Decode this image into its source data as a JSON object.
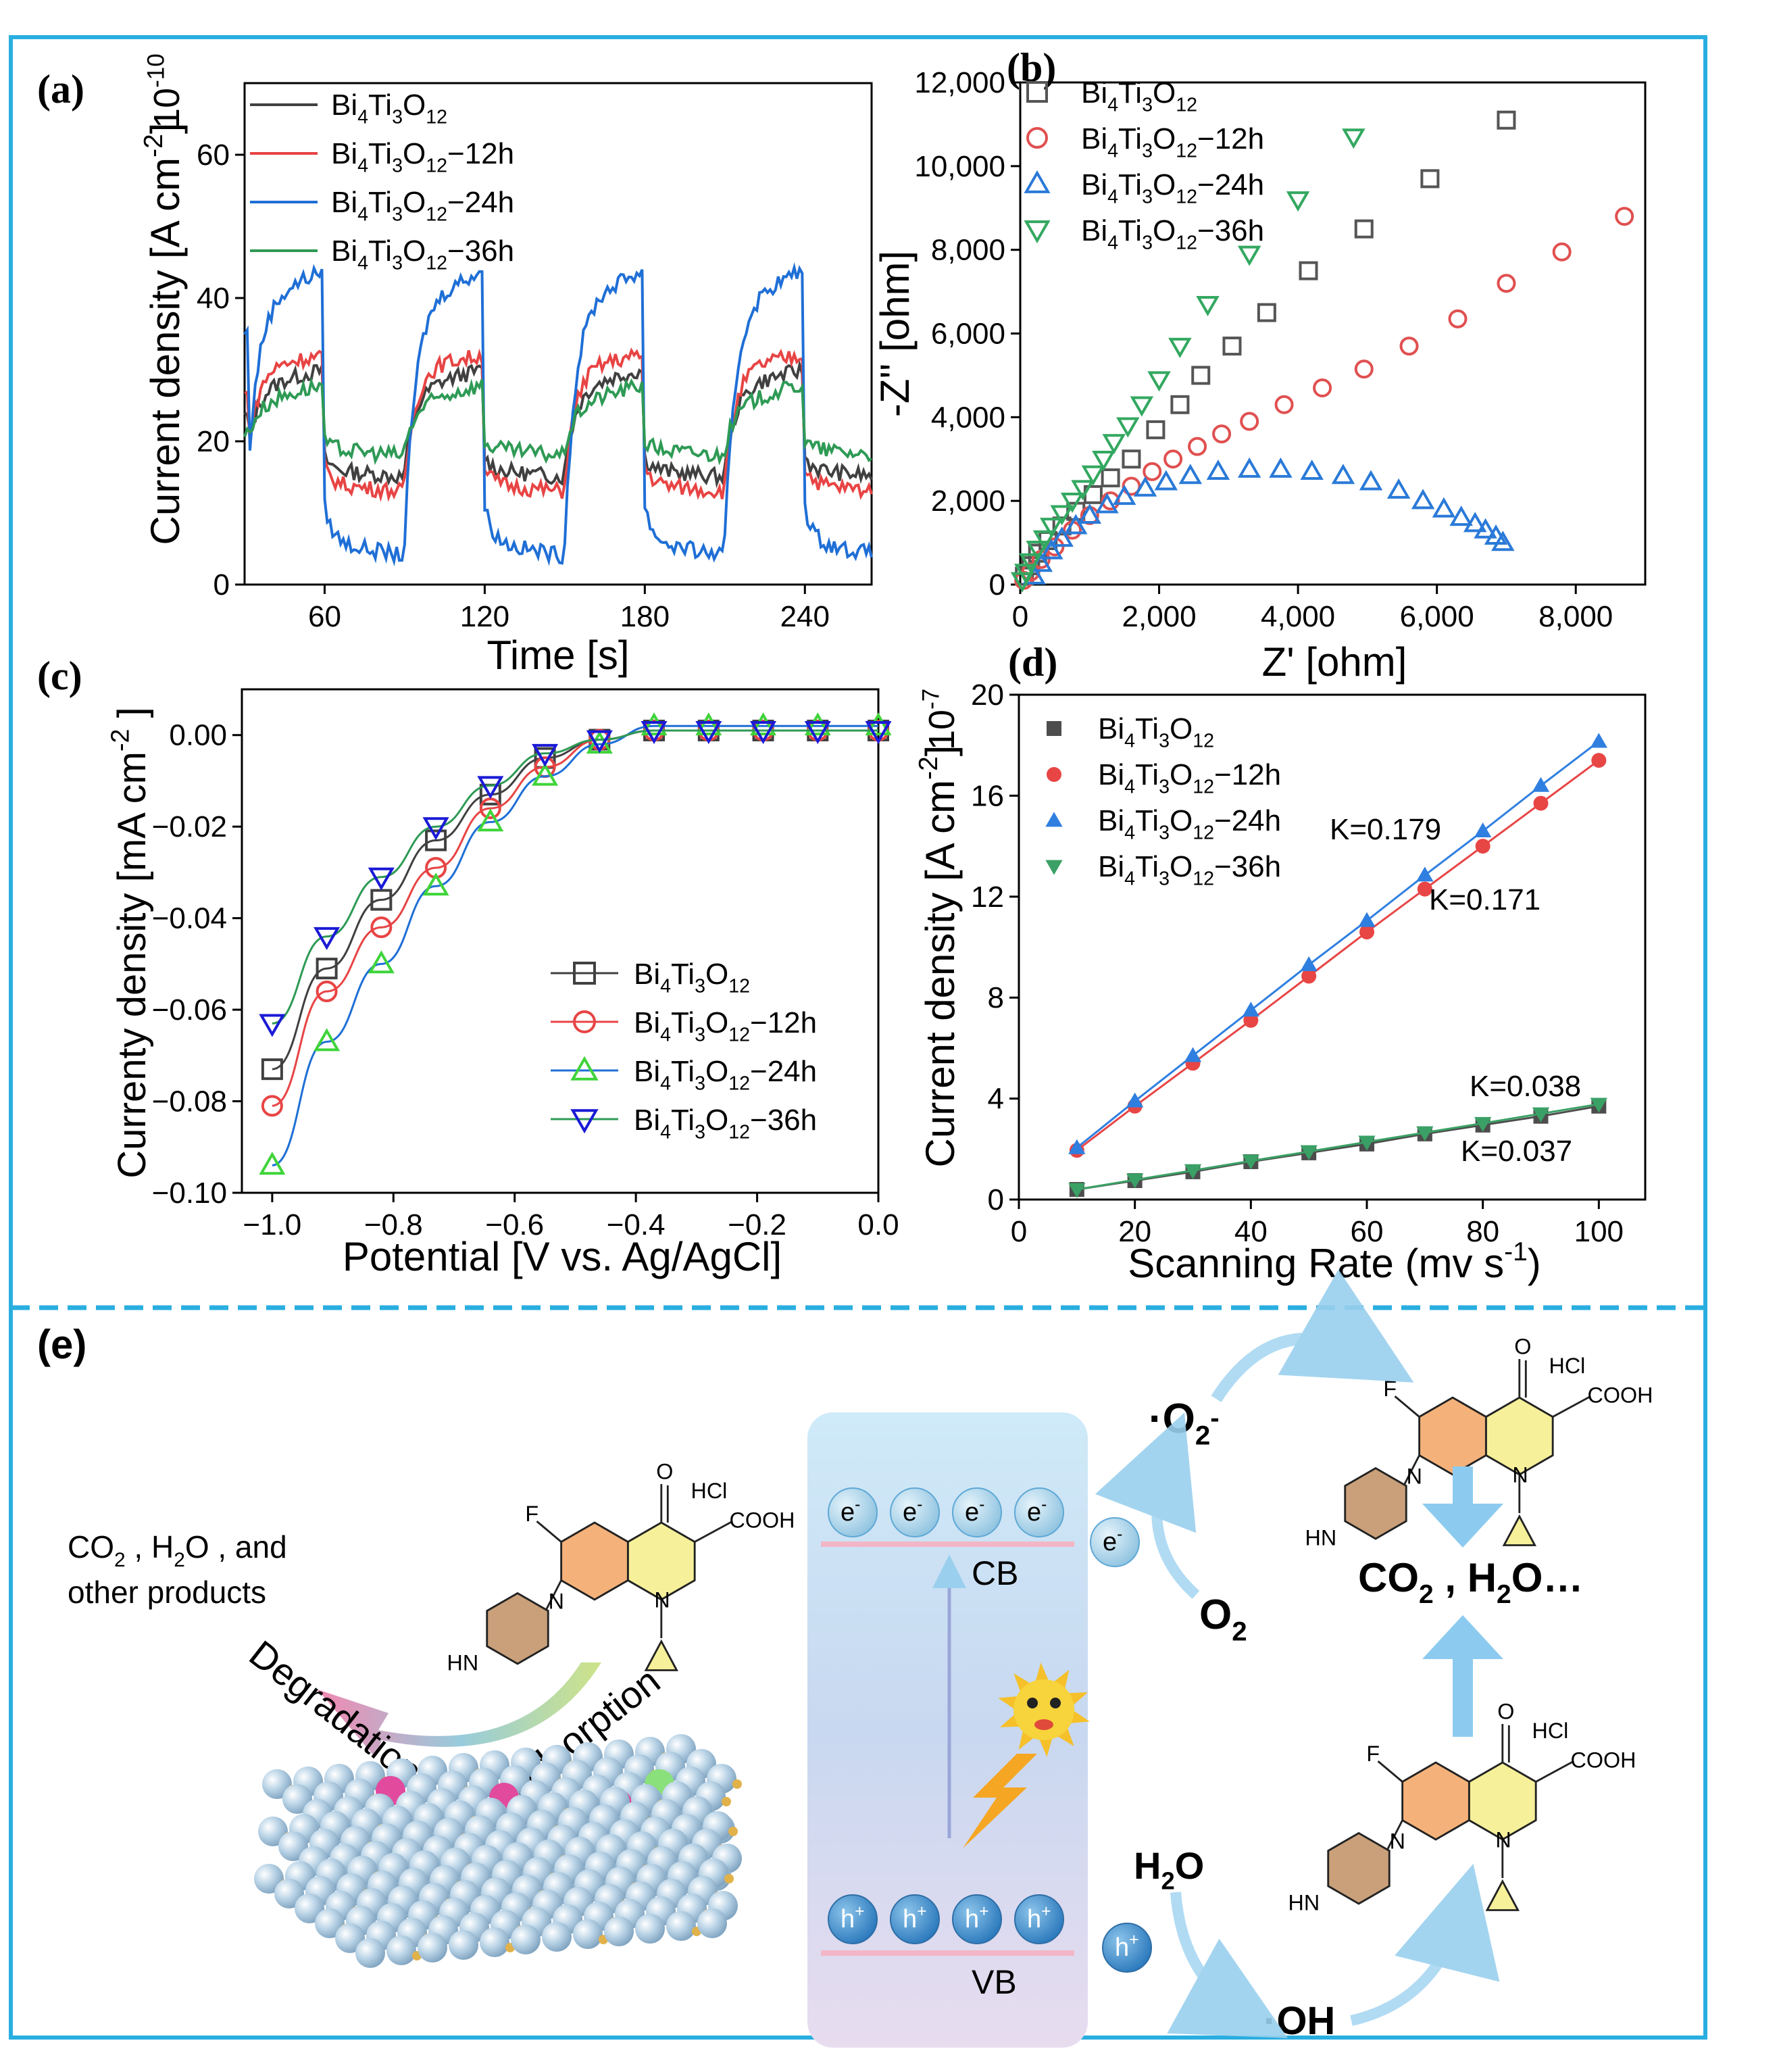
{
  "colors": {
    "border": "#29aee0",
    "black": "#404040",
    "red": "#e84444",
    "blue": "#1f6fd6",
    "green": "#2e9a55",
    "bright_green": "#3fd43a",
    "navy": "#1a1ad6",
    "eis_gray": "#555555",
    "eis_red": "#e05050",
    "eis_blue": "#2a7ad8",
    "eis_green": "#33a860",
    "d_gray": "#4d4d4d",
    "d_red": "#e84545",
    "d_blue": "#2f7fe0",
    "d_green": "#3aa065"
  },
  "chart_data": [
    {
      "panel": "(a)",
      "type": "line",
      "xlabel": "Time [s]",
      "ylabel": "Current density [A cm",
      "ylabel_sup": "-2",
      "ylabel_close": "]",
      "multiplier": "10",
      "multiplier_exp": "-10",
      "xlim": [
        30,
        265
      ],
      "ylim": [
        0,
        70
      ],
      "xticks": [
        "60",
        "120",
        "180",
        "240"
      ],
      "xtick_values": [
        60,
        120,
        180,
        240
      ],
      "yticks": [
        "0",
        "20",
        "40",
        "60"
      ],
      "ytick_values": [
        0,
        20,
        40,
        60
      ],
      "legend": "top-left",
      "series": [
        {
          "name": "Bi4Ti3O12",
          "color_key": "black",
          "on": 27.5,
          "off": 16,
          "peak": 30,
          "trough": 15
        },
        {
          "name": "Bi4Ti3O12-12h",
          "color_key": "red",
          "on": 30.5,
          "off": 14,
          "peak": 32,
          "trough": 13
        },
        {
          "name": "Bi4Ti3O12-24h",
          "color_key": "blue",
          "on": 39,
          "off": 6,
          "peak": 44,
          "trough": 4
        },
        {
          "name": "Bi4Ti3O12-36h",
          "color_key": "green",
          "on": 25,
          "off": 19,
          "peak": 28,
          "trough": 18
        }
      ]
    },
    {
      "panel": "(b)",
      "type": "scatter",
      "xlabel": "Z' [ohm]",
      "ylabel": "-Z'' [ohm]",
      "xlim": [
        0,
        9000
      ],
      "ylim": [
        0,
        12000
      ],
      "xticks": [
        "0",
        "2,000",
        "4,000",
        "6,000",
        "8,000"
      ],
      "xtick_values": [
        0,
        2000,
        4000,
        6000,
        8000
      ],
      "yticks": [
        "0",
        "2,000",
        "4,000",
        "6,000",
        "8,000",
        "10,000",
        "12,000"
      ],
      "ytick_values": [
        0,
        2000,
        4000,
        6000,
        8000,
        10000,
        12000
      ],
      "legend": "top-left",
      "series": [
        {
          "name": "Bi4Ti3O12",
          "marker": "square",
          "color_key": "eis_gray",
          "x": [
            60,
            150,
            250,
            400,
            600,
            800,
            1050,
            1300,
            1600,
            1950,
            2300,
            2600,
            3050,
            3550,
            4150,
            4950,
            5900,
            7000
          ],
          "y": [
            200,
            450,
            750,
            1050,
            1400,
            1750,
            2150,
            2550,
            3000,
            3700,
            4300,
            5000,
            5700,
            6500,
            7500,
            8500,
            9700,
            11100
          ]
        },
        {
          "name": "Bi4Ti3O12-12h",
          "marker": "circle",
          "color_key": "eis_red",
          "x": [
            50,
            150,
            300,
            500,
            750,
            1000,
            1300,
            1600,
            1900,
            2200,
            2550,
            2900,
            3300,
            3800,
            4350,
            4950,
            5600,
            6300,
            7000,
            7800,
            8700
          ],
          "y": [
            100,
            300,
            600,
            900,
            1300,
            1650,
            2000,
            2350,
            2700,
            3000,
            3300,
            3600,
            3900,
            4300,
            4700,
            5150,
            5700,
            6350,
            7200,
            7950,
            8800
          ]
        },
        {
          "name": "Bi4Ti3O12-24h",
          "marker": "triangle-up",
          "color_key": "eis_blue",
          "x": [
            200,
            300,
            450,
            600,
            800,
            1000,
            1250,
            1500,
            1800,
            2100,
            2450,
            2850,
            3300,
            3750,
            4200,
            4650,
            5050,
            5450,
            5800,
            6100,
            6350,
            6550,
            6700,
            6850,
            6950
          ],
          "y": [
            200,
            500,
            800,
            1100,
            1400,
            1650,
            1900,
            2100,
            2300,
            2450,
            2600,
            2700,
            2750,
            2750,
            2700,
            2600,
            2450,
            2250,
            2000,
            1800,
            1600,
            1450,
            1300,
            1150,
            1000
          ]
        },
        {
          "name": "Bi4Ti3O12-36h",
          "marker": "triangle-down",
          "color_key": "eis_green",
          "x": [
            30,
            80,
            150,
            250,
            350,
            450,
            600,
            750,
            900,
            1050,
            1200,
            1350,
            1550,
            1750,
            2000,
            2300,
            2700,
            3300,
            4000,
            4800
          ],
          "y": [
            100,
            300,
            550,
            850,
            1100,
            1400,
            1700,
            2000,
            2300,
            2650,
            3000,
            3400,
            3800,
            4300,
            4900,
            5700,
            6700,
            7900,
            9200,
            10700
          ]
        }
      ]
    },
    {
      "panel": "(c)",
      "type": "line",
      "xlabel": "Potential [V vs. Ag/AgCl]",
      "ylabel": "Currenty density [mA cm",
      "ylabel_sup": "-2",
      "ylabel_close": " ]",
      "xlim": [
        -1.05,
        0.0
      ],
      "ylim": [
        -0.1,
        0.01
      ],
      "xticks": [
        "-1.0",
        "-0.8",
        "-0.6",
        "-0.4",
        "-0.2",
        "0.0"
      ],
      "xtick_values": [
        -1.0,
        -0.8,
        -0.6,
        -0.4,
        -0.2,
        0.0
      ],
      "yticks": [
        "-0.10",
        "-0.08",
        "-0.06",
        "-0.04",
        "-0.02",
        "0.00"
      ],
      "ytick_values": [
        -0.1,
        -0.08,
        -0.06,
        -0.04,
        -0.02,
        0.0
      ],
      "legend": "center-right",
      "series": [
        {
          "name": "Bi4Ti3O12",
          "marker": "square",
          "color_key": "black",
          "x": [
            -1.0,
            -0.91,
            -0.82,
            -0.73,
            -0.64,
            -0.55,
            -0.46,
            -0.37,
            -0.28,
            -0.19,
            -0.1,
            0.0
          ],
          "y": [
            -0.073,
            -0.051,
            -0.036,
            -0.023,
            -0.013,
            -0.005,
            -0.001,
            0.001,
            0.001,
            0.001,
            0.001,
            0.001
          ]
        },
        {
          "name": "Bi4Ti3O12-12h",
          "marker": "circle",
          "color_key": "red",
          "x": [
            -1.0,
            -0.91,
            -0.82,
            -0.73,
            -0.64,
            -0.55,
            -0.46,
            -0.37,
            -0.28,
            -0.19,
            -0.1,
            0.0
          ],
          "y": [
            -0.081,
            -0.056,
            -0.042,
            -0.029,
            -0.016,
            -0.007,
            -0.001,
            0.001,
            0.001,
            0.001,
            0.001,
            0.001
          ]
        },
        {
          "name": "Bi4Ti3O12-24h",
          "marker": "triangle-up",
          "color_key": "bright_green",
          "x": [
            -1.0,
            -0.91,
            -0.82,
            -0.73,
            -0.64,
            -0.55,
            -0.46,
            -0.37,
            -0.28,
            -0.19,
            -0.1,
            0.0
          ],
          "y": [
            -0.094,
            -0.067,
            -0.05,
            -0.033,
            -0.019,
            -0.009,
            -0.002,
            0.002,
            0.002,
            0.002,
            0.002,
            0.002
          ]
        },
        {
          "name": "Bi4Ti3O12-36h",
          "marker": "triangle-down",
          "color_key": "navy",
          "x": [
            -1.0,
            -0.91,
            -0.82,
            -0.73,
            -0.64,
            -0.55,
            -0.46,
            -0.37,
            -0.28,
            -0.19,
            -0.1,
            0.0
          ],
          "y": [
            -0.063,
            -0.044,
            -0.031,
            -0.02,
            -0.011,
            -0.004,
            -0.001,
            0.001,
            0.001,
            0.001,
            0.001,
            0.001
          ]
        }
      ],
      "fit_color_key": {
        "Bi4Ti3O12": "black",
        "Bi4Ti3O12-12h": "red",
        "Bi4Ti3O12-24h": "blue",
        "Bi4Ti3O12-36h": "green"
      }
    },
    {
      "panel": "(d)",
      "type": "scatter",
      "xlabel": "Scanning Rate (mv s",
      "xlabel_sup": "-1",
      "xlabel_close": ")",
      "ylabel": "Current density [A cm",
      "ylabel_sup": "-2",
      "ylabel_close": "]",
      "multiplier": "10",
      "multiplier_exp": "-7",
      "xlim": [
        0,
        108
      ],
      "ylim": [
        0,
        20
      ],
      "xticks": [
        "0",
        "20",
        "40",
        "60",
        "80",
        "100"
      ],
      "xtick_values": [
        0,
        20,
        40,
        60,
        80,
        100
      ],
      "yticks": [
        "0",
        "4",
        "8",
        "12",
        "16",
        "20"
      ],
      "ytick_values": [
        0,
        4,
        8,
        12,
        16,
        20
      ],
      "legend": "top-left",
      "x": [
        10,
        20,
        30,
        40,
        50,
        60,
        70,
        80,
        90,
        100
      ],
      "series": [
        {
          "name": "Bi4Ti3O12",
          "marker": "square",
          "color_key": "d_gray",
          "values": [
            0.4,
            0.75,
            1.1,
            1.5,
            1.85,
            2.2,
            2.6,
            2.95,
            3.3,
            3.7
          ]
        },
        {
          "name": "Bi4Ti3O12-12h",
          "marker": "circle",
          "color_key": "d_red",
          "values": [
            1.95,
            3.7,
            5.4,
            7.1,
            8.85,
            10.6,
            12.3,
            14.0,
            15.7,
            17.4
          ]
        },
        {
          "name": "Bi4Ti3O12-24h",
          "marker": "triangle-up",
          "color_key": "d_blue",
          "values": [
            2.05,
            3.9,
            5.7,
            7.5,
            9.3,
            11.05,
            12.85,
            14.6,
            16.4,
            18.15
          ]
        },
        {
          "name": "Bi4Ti3O12-36h",
          "marker": "triangle-down",
          "color_key": "d_green",
          "values": [
            0.4,
            0.78,
            1.15,
            1.53,
            1.9,
            2.28,
            2.65,
            3.02,
            3.4,
            3.78
          ]
        }
      ],
      "annotations": [
        "K=0.179",
        "K=0.171",
        "K=0.038",
        "K=0.037"
      ]
    }
  ],
  "panel_e": {
    "label": "(e)",
    "products_line1": "CO",
    "products_line1_sub": "2",
    "products_line1_rest": " ,  H",
    "products_line1_sub2": "2",
    "products_line1_end": "O , and",
    "products_line2": "other products",
    "degradation": "Degradation",
    "adsorption": "Adsorption",
    "molecule_f": "F",
    "molecule_o": "O",
    "molecule_hcl": "HCl",
    "molecule_cooh": "COOH",
    "molecule_n": "N",
    "molecule_hn": "HN",
    "electron": "e",
    "electron_sup": "-",
    "hole": "h",
    "hole_sup": "+",
    "cb": "CB",
    "vb": "VB",
    "superoxide": "·O",
    "superoxide_sub": "2",
    "superoxide_sup": "-",
    "oxygen": "O",
    "oxygen_sub": "2",
    "water": "H",
    "water_sub": "2",
    "water_rest": "O",
    "hydroxyl": "·OH",
    "final": "CO",
    "final_sub": "2",
    "final_rest": " , H",
    "final_sub2": "2",
    "final_end": "O…"
  }
}
